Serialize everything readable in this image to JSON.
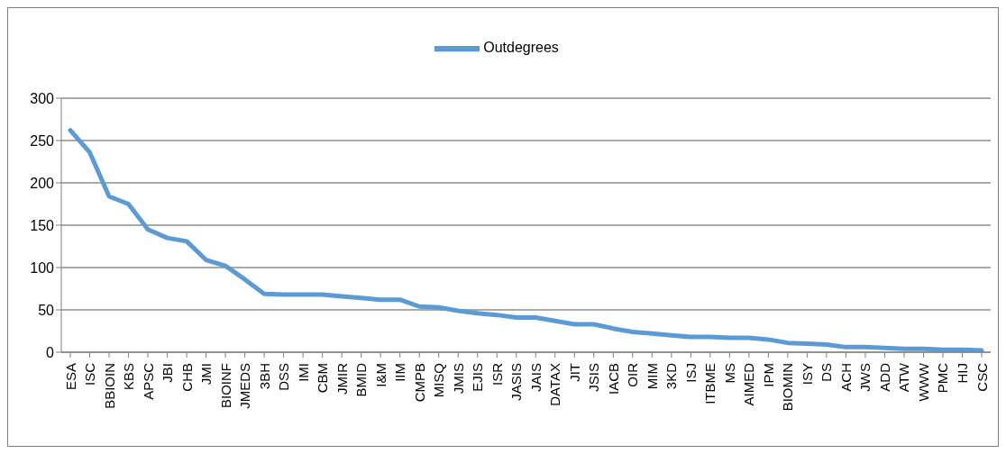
{
  "chart_data": {
    "type": "line",
    "categories": [
      "ESA",
      "ISC",
      "BBIOIN",
      "KBS",
      "APSC",
      "JBI",
      "CHB",
      "JMI",
      "BIOINF",
      "JMEDS",
      "3BH",
      "DSS",
      "IMI",
      "CBM",
      "JMIR",
      "BMID",
      "I&M",
      "IIM",
      "CMPB",
      "MISQ",
      "JMIS",
      "EJIS",
      "ISR",
      "JASIS",
      "JAIS",
      "DATAX",
      "JIT",
      "JSIS",
      "IACB",
      "OIR",
      "MIM",
      "3KD",
      "ISJ",
      "ITBME",
      "MS",
      "AIMED",
      "IPM",
      "BIOMIN",
      "ISY",
      "DS",
      "ACH",
      "JWS",
      "ADD",
      "ATW",
      "WWW",
      "PMC",
      "HIJ",
      "CSC"
    ],
    "series": [
      {
        "name": "Outdegrees",
        "color": "#5b9bd5",
        "values": [
          262,
          236,
          184,
          175,
          145,
          135,
          131,
          109,
          102,
          86,
          69,
          68,
          68,
          68,
          66,
          64,
          62,
          62,
          54,
          53,
          49,
          46,
          44,
          41,
          41,
          37,
          33,
          33,
          28,
          24,
          22,
          20,
          18,
          18,
          17,
          17,
          15,
          11,
          10,
          9,
          6,
          6,
          5,
          4,
          4,
          3,
          3,
          2
        ]
      }
    ],
    "ylim": [
      0,
      300
    ],
    "yticks": [
      0,
      50,
      100,
      150,
      200,
      250,
      300
    ],
    "grid": "y",
    "legend": "top",
    "marker": "none",
    "line_style": "solid"
  }
}
